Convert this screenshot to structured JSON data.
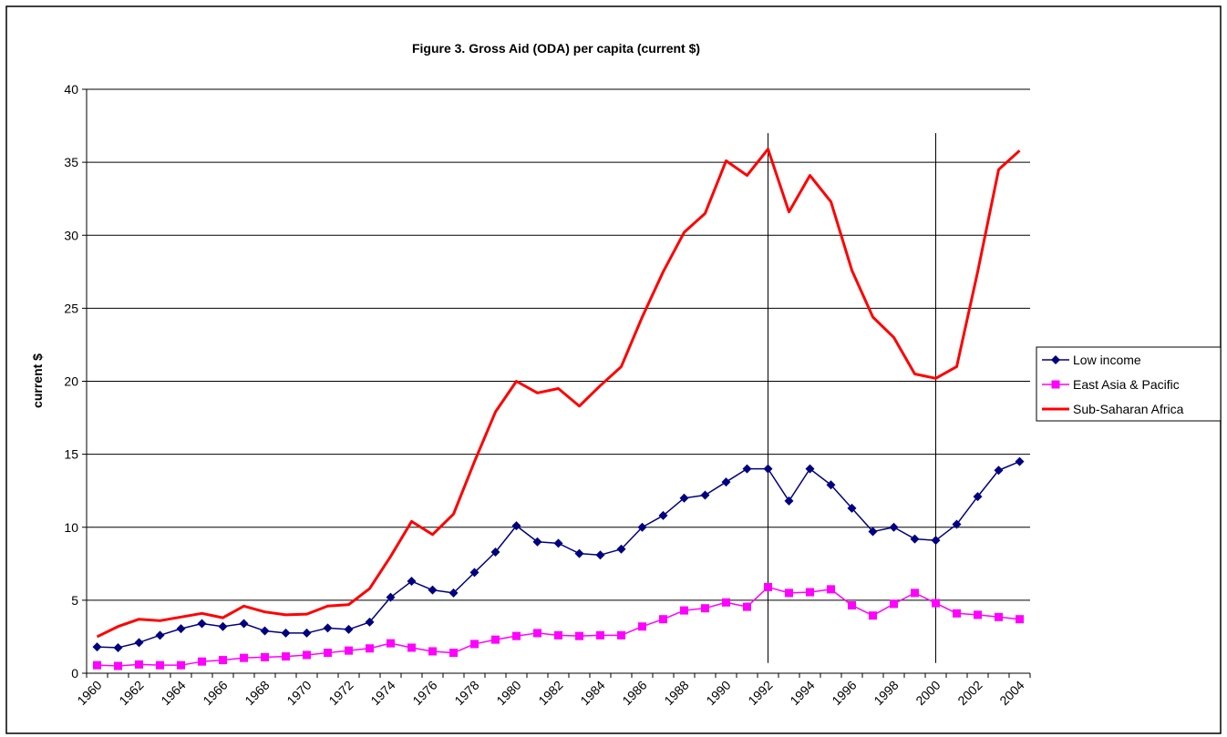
{
  "chart_data": {
    "type": "line",
    "title": "Figure 3. Gross Aid (ODA) per capita (current $)",
    "y_label": "current $",
    "categories": [
      "1960",
      null,
      "1962",
      null,
      "1964",
      null,
      "1966",
      null,
      "1968",
      null,
      "1970",
      null,
      "1972",
      null,
      "1974",
      null,
      "1976",
      null,
      "1978",
      null,
      "1980",
      null,
      "1982",
      null,
      "1984",
      null,
      "1986",
      null,
      "1988",
      null,
      "1990",
      null,
      "1992",
      null,
      "1994",
      null,
      "1996",
      null,
      "1998",
      null,
      "2000",
      null,
      "2002",
      null,
      "2004"
    ],
    "series": [
      {
        "name": "Low income",
        "color": "#000080",
        "marker": "diamond",
        "values": [
          1.8,
          1.75,
          2.1,
          2.6,
          3.05,
          3.4,
          3.2,
          3.4,
          2.9,
          2.75,
          2.75,
          3.1,
          3.0,
          3.5,
          5.2,
          6.3,
          5.7,
          5.5,
          6.9,
          8.3,
          10.1,
          9.0,
          8.9,
          8.2,
          8.1,
          8.5,
          10.0,
          10.8,
          12.0,
          12.2,
          13.1,
          14.0,
          14.0,
          11.8,
          14.0,
          12.9,
          11.3,
          9.7,
          10.0,
          9.2,
          9.1,
          10.2,
          12.1,
          13.9,
          14.5
        ]
      },
      {
        "name": "East Asia & Pacific",
        "color": "#ff00ff",
        "marker": "square",
        "values": [
          0.55,
          0.5,
          0.6,
          0.55,
          0.55,
          0.8,
          0.9,
          1.05,
          1.1,
          1.15,
          1.25,
          1.4,
          1.55,
          1.7,
          2.05,
          1.75,
          1.5,
          1.4,
          2.0,
          2.3,
          2.55,
          2.75,
          2.6,
          2.55,
          2.6,
          2.6,
          3.2,
          3.7,
          4.3,
          4.45,
          4.85,
          4.55,
          5.9,
          5.5,
          5.55,
          5.75,
          4.65,
          3.95,
          4.75,
          5.5,
          4.8,
          4.1,
          4.0,
          3.85,
          3.7
        ]
      },
      {
        "name": "Sub-Saharan Africa",
        "color": "#ff0000",
        "marker": "none",
        "values": [
          2.5,
          3.2,
          3.7,
          3.6,
          3.85,
          4.1,
          3.8,
          4.6,
          4.2,
          4.0,
          4.05,
          4.6,
          4.7,
          5.8,
          8.0,
          10.4,
          9.5,
          10.9,
          14.5,
          17.9,
          20.0,
          19.2,
          19.5,
          18.3,
          19.7,
          21.0,
          24.4,
          27.5,
          30.2,
          31.5,
          35.1,
          34.1,
          35.9,
          31.6,
          34.1,
          32.3,
          27.6,
          24.4,
          23.0,
          20.5,
          20.2,
          21.0,
          27.5,
          34.5,
          35.8
        ]
      }
    ],
    "reference_lines_x": [
      1992,
      2000
    ],
    "ylim": [
      0,
      40
    ],
    "yticks": [
      0,
      5,
      10,
      15,
      20,
      25,
      30,
      35,
      40
    ],
    "grid": true,
    "legend": "right"
  }
}
